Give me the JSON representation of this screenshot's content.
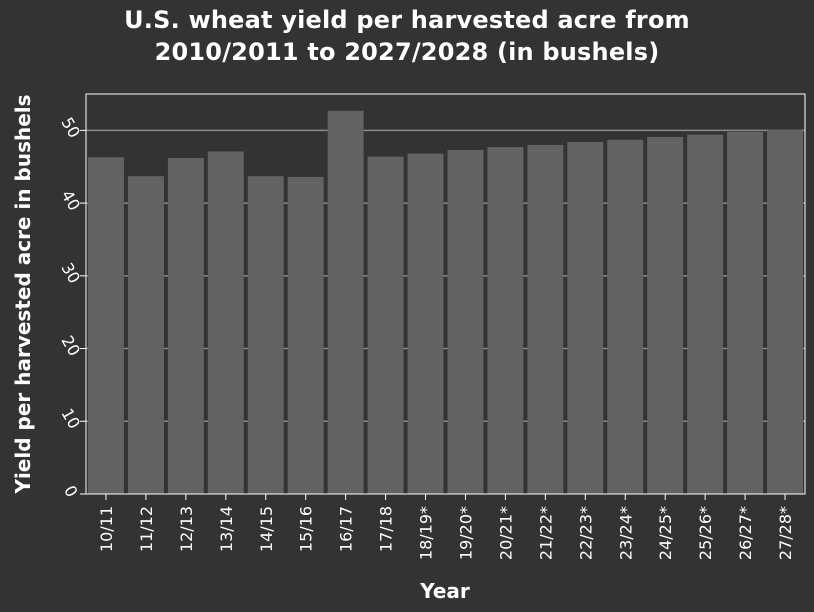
{
  "chart_data": {
    "type": "bar",
    "title_lines": [
      "U.S. wheat yield per harvested acre from",
      "2010/2011 to 2027/2028 (in bushels)"
    ],
    "xlabel": "Year",
    "ylabel": "Yield per harvested acre in bushels",
    "categories": [
      "10/11",
      "11/12",
      "12/13",
      "13/14",
      "14/15",
      "15/16",
      "16/17",
      "17/18",
      "18/19*",
      "19/20*",
      "20/21*",
      "21/22*",
      "22/23*",
      "23/24*",
      "24/25*",
      "25/26*",
      "26/27*",
      "27/28*"
    ],
    "values": [
      46.3,
      43.7,
      46.2,
      47.1,
      43.7,
      43.6,
      52.7,
      46.4,
      46.8,
      47.3,
      47.7,
      48.0,
      48.4,
      48.7,
      49.1,
      49.4,
      49.8,
      50.1
    ],
    "yticks": [
      0,
      10,
      20,
      30,
      40,
      50
    ],
    "ylim": [
      0,
      55
    ],
    "grid": true,
    "colors": {
      "background": "#333333",
      "bar": "#636363",
      "grid": "#8a8a8a",
      "text": "#ffffff"
    }
  }
}
